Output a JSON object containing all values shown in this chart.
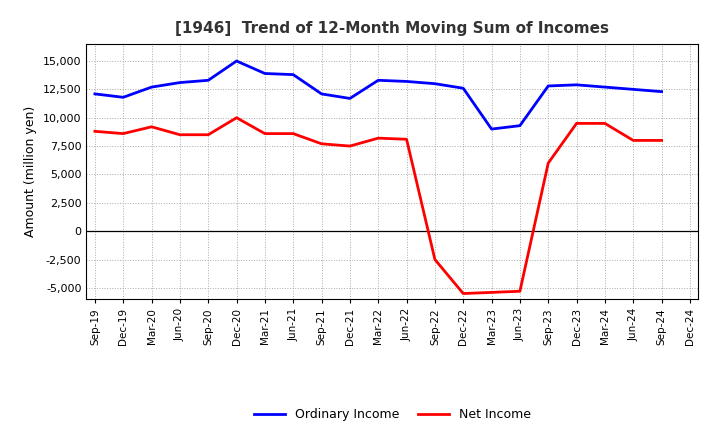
{
  "title": "[1946]  Trend of 12-Month Moving Sum of Incomes",
  "ylabel": "Amount (million yen)",
  "x_labels": [
    "Sep-19",
    "Dec-19",
    "Mar-20",
    "Jun-20",
    "Sep-20",
    "Dec-20",
    "Mar-21",
    "Jun-21",
    "Sep-21",
    "Dec-21",
    "Mar-22",
    "Jun-22",
    "Sep-22",
    "Dec-22",
    "Mar-23",
    "Jun-23",
    "Sep-23",
    "Dec-23",
    "Mar-24",
    "Jun-24",
    "Sep-24",
    "Dec-24"
  ],
  "ordinary_income_x": [
    0,
    1,
    2,
    3,
    4,
    5,
    6,
    7,
    8,
    9,
    10,
    11,
    12,
    13,
    14,
    15,
    16,
    17,
    18,
    19,
    20
  ],
  "ordinary_income_y": [
    12100,
    11800,
    12700,
    13100,
    13300,
    15000,
    13900,
    13800,
    12100,
    11700,
    13300,
    13200,
    13000,
    12600,
    9000,
    9300,
    12800,
    12900,
    12700,
    12500,
    12300
  ],
  "net_income_x": [
    0,
    1,
    2,
    3,
    4,
    5,
    6,
    7,
    8,
    9,
    10,
    11,
    12,
    13,
    14,
    15,
    16,
    17,
    18,
    19,
    20
  ],
  "net_income_y": [
    8800,
    8600,
    9200,
    8500,
    8500,
    10000,
    8600,
    8600,
    7700,
    7500,
    8200,
    8100,
    -2500,
    -5500,
    -5400,
    -5300,
    6000,
    9500,
    9500,
    8000,
    8000
  ],
  "ylim": [
    -6000,
    16500
  ],
  "yticks": [
    -5000,
    -2500,
    0,
    2500,
    5000,
    7500,
    10000,
    12500,
    15000
  ],
  "line_color_ordinary": "#0000FF",
  "line_color_net": "#FF0000",
  "background_color": "#FFFFFF",
  "grid_color": "#AAAAAA",
  "title_color": "#333333",
  "legend_ordinary": "Ordinary Income",
  "legend_net": "Net Income"
}
